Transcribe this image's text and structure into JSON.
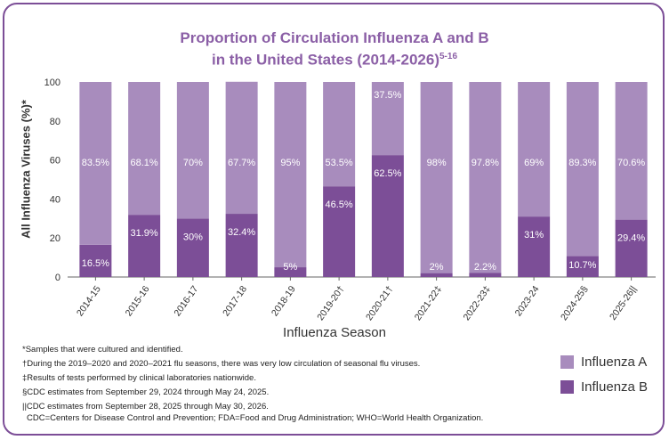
{
  "chart_data": {
    "type": "bar",
    "stacked": true,
    "title_line1": "Proportion of Circulation Influenza A and B",
    "title_line2": "in the United States (2014-2026)",
    "title_superscript": "5-16",
    "ylabel": "All Influenza Viruses (%)*",
    "xlabel": "Influenza Season",
    "ylim": [
      0,
      100
    ],
    "yticks": [
      "0",
      "20",
      "40",
      "60",
      "80",
      "100"
    ],
    "categories": [
      "2014-15",
      "2015-16",
      "2016-17",
      "2017-18",
      "2018-19",
      "2019-20†",
      "2020-21†",
      "2021-22‡",
      "2022-23‡",
      "2023-24",
      "2024-25§",
      "2025-26||"
    ],
    "series": [
      {
        "name": "Influenza B",
        "color": "#7c4e97",
        "values": [
          16.5,
          31.9,
          30,
          32.4,
          5,
          46.5,
          62.5,
          2,
          2.2,
          31,
          10.7,
          29.4
        ],
        "labels": [
          "16.5%",
          "31.9%",
          "30%",
          "32.4%",
          "5%",
          "46.5%",
          "62.5%",
          "2%",
          "2.2%",
          "31%",
          "10.7%",
          "29.4%"
        ]
      },
      {
        "name": "Influenza A",
        "color": "#a88cbd",
        "values": [
          83.5,
          68.1,
          70,
          67.7,
          95,
          53.5,
          37.5,
          98,
          97.8,
          69,
          89.3,
          70.6
        ],
        "labels": [
          "83.5%",
          "68.1%",
          "70%",
          "67.7%",
          "95%",
          "53.5%",
          "37.5%",
          "98%",
          "97.8%",
          "69%",
          "89.3%",
          "70.6%"
        ]
      }
    ],
    "legend_position": "bottom-right",
    "grid": false
  },
  "footnotes": [
    "*Samples that were cultured and identified.",
    "†During the 2019–2020 and 2020–2021 flu seasons, there was very low circulation of seasonal flu viruses.",
    "‡Results of tests performed by clinical laboratories nationwide.",
    "§CDC estimates from September 29, 2024 through May 24, 2025.",
    "||CDC estimates from September 28, 2025 through May 30, 2026."
  ],
  "abbreviations": "CDC=Centers for Disease Control and Prevention; FDA=Food and Drug Administration; WHO=World Health Organization.",
  "legend": {
    "a_label": "Influenza A",
    "b_label": "Influenza B"
  }
}
